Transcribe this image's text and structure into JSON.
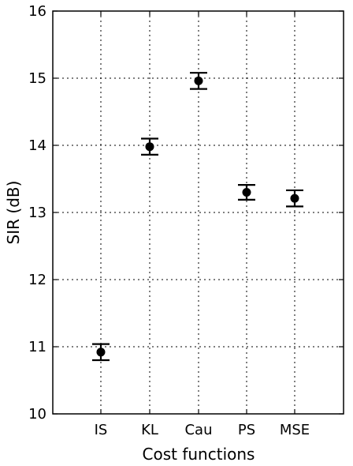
{
  "chart_data": {
    "type": "scatter",
    "xlabel": "Cost functions",
    "ylabel": "SIR (dB)",
    "ylim": [
      10,
      16
    ],
    "yticks": [
      "10",
      "11",
      "12",
      "13",
      "14",
      "15",
      "16"
    ],
    "categories": [
      "IS",
      "KL",
      "Cau",
      "PS",
      "MSE"
    ],
    "values": [
      10.92,
      13.98,
      14.96,
      13.3,
      13.21
    ],
    "err_low": [
      10.8,
      13.86,
      14.84,
      13.19,
      13.09
    ],
    "err_high": [
      11.04,
      14.1,
      15.08,
      13.41,
      13.33
    ],
    "grid": true
  }
}
